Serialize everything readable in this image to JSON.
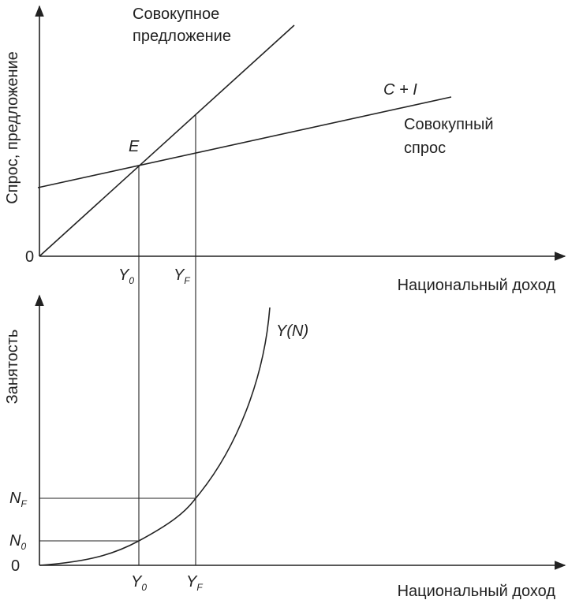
{
  "top_panel": {
    "y_axis_label": "Спрос, предложение",
    "x_axis_label": "Национальный доход",
    "origin": "0",
    "supply_label": [
      "Совокупное",
      "предложение"
    ],
    "demand_formula": "C + I",
    "demand_label": [
      "Совокупный",
      "спрос"
    ],
    "equilibrium": "E",
    "x_marks": [
      {
        "main": "Y",
        "sub": "0"
      },
      {
        "main": "Y",
        "sub": "F"
      }
    ]
  },
  "bottom_panel": {
    "y_axis_label": "Занятость",
    "x_axis_label": "Национальный доход",
    "origin": "0",
    "curve_label": "Y(N)",
    "y_marks": [
      {
        "main": "N",
        "sub": "F"
      },
      {
        "main": "N",
        "sub": "0"
      }
    ],
    "x_marks": [
      {
        "main": "Y",
        "sub": "0"
      },
      {
        "main": "Y",
        "sub": "F"
      }
    ]
  }
}
